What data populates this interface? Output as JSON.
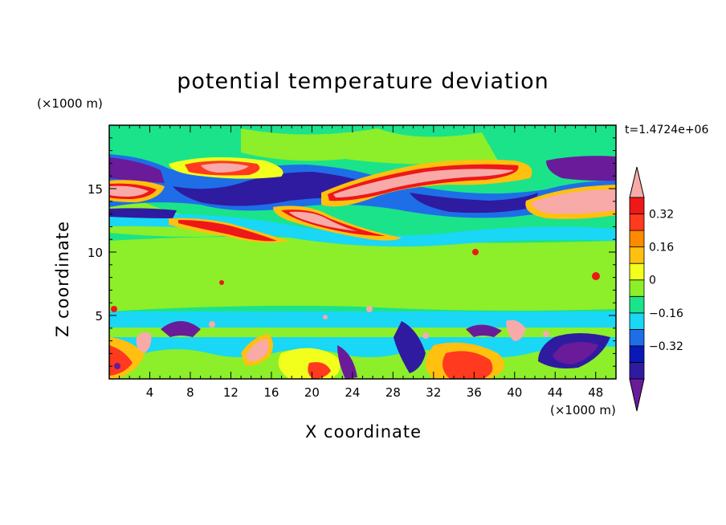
{
  "chart_data": {
    "type": "heatmap",
    "title": "potential temperature deviation",
    "xlabel": "X coordinate",
    "ylabel": "Z coordinate",
    "x_unit": "(×1000 m)",
    "y_unit": "(×1000 m)",
    "time_label": "t=1.4724e+06",
    "xlim": [
      0,
      50
    ],
    "ylim": [
      0,
      20
    ],
    "x_ticks": [
      "4",
      "8",
      "12",
      "16",
      "20",
      "24",
      "28",
      "32",
      "36",
      "40",
      "44",
      "48"
    ],
    "y_ticks": [
      "5",
      "10",
      "15"
    ],
    "colorbar": {
      "labels": [
        "0.32",
        "0.16",
        "0",
        "−0.16",
        "−0.32"
      ],
      "levels": [
        -0.48,
        -0.4,
        -0.32,
        -0.24,
        -0.16,
        -0.08,
        0,
        0.08,
        0.16,
        0.24,
        0.32,
        0.4
      ],
      "colors": [
        "#6a1b9a",
        "#2e1ba0",
        "#0a18b8",
        "#1e6ee8",
        "#19d7f5",
        "#1be38a",
        "#8cef2a",
        "#f2ff1c",
        "#ffc00f",
        "#ff8a00",
        "#ff3a1e",
        "#ee1818",
        "#f7aaa8"
      ],
      "extend": "both"
    }
  }
}
